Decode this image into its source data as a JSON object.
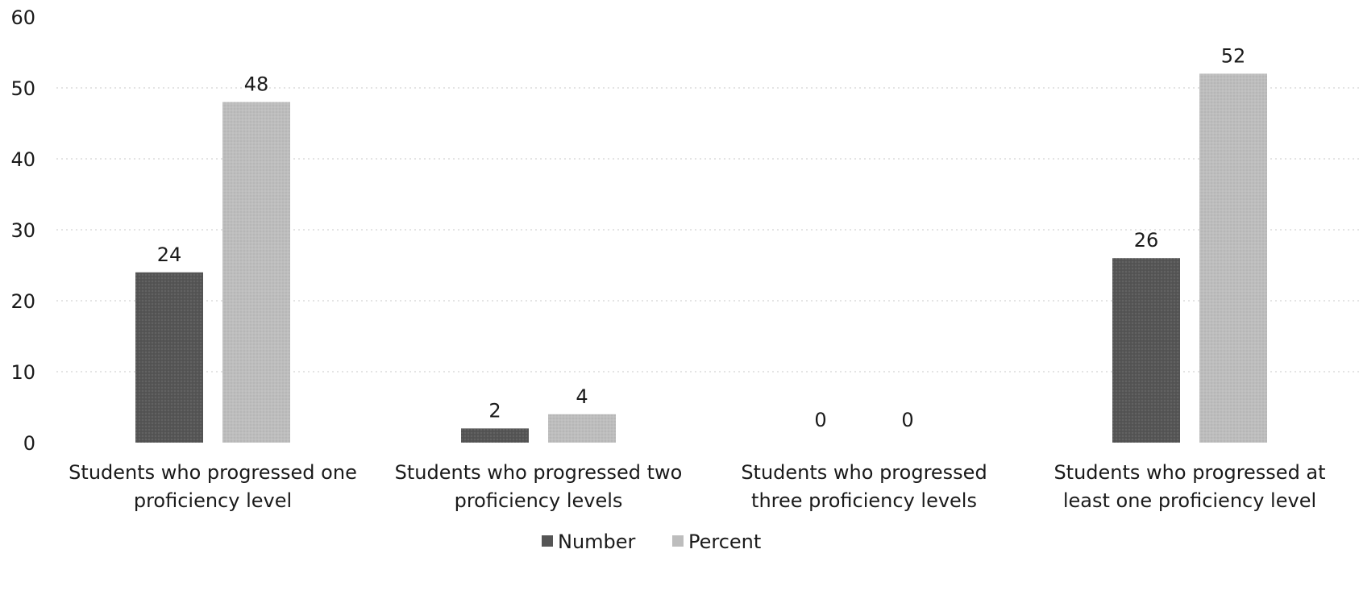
{
  "chart_data": {
    "type": "bar",
    "title": "",
    "xlabel": "",
    "ylabel": "",
    "ylim": [
      0,
      60
    ],
    "yticks": [
      0,
      10,
      20,
      30,
      40,
      50,
      60
    ],
    "grid": true,
    "legend_position": "bottom-center",
    "categories": [
      [
        "Students who progressed one",
        "proficiency level"
      ],
      [
        "Students who progressed two",
        "proficiency levels"
      ],
      [
        "Students who progressed",
        "three proficiency levels"
      ],
      [
        "Students who progressed at",
        "least one proficiency level"
      ]
    ],
    "series": [
      {
        "name": "Number",
        "values": [
          24,
          2,
          0,
          26
        ],
        "color": "#555555"
      },
      {
        "name": "Percent",
        "values": [
          48,
          4,
          0,
          52
        ],
        "color": "#bdbdbd"
      }
    ],
    "data_labels": true
  }
}
